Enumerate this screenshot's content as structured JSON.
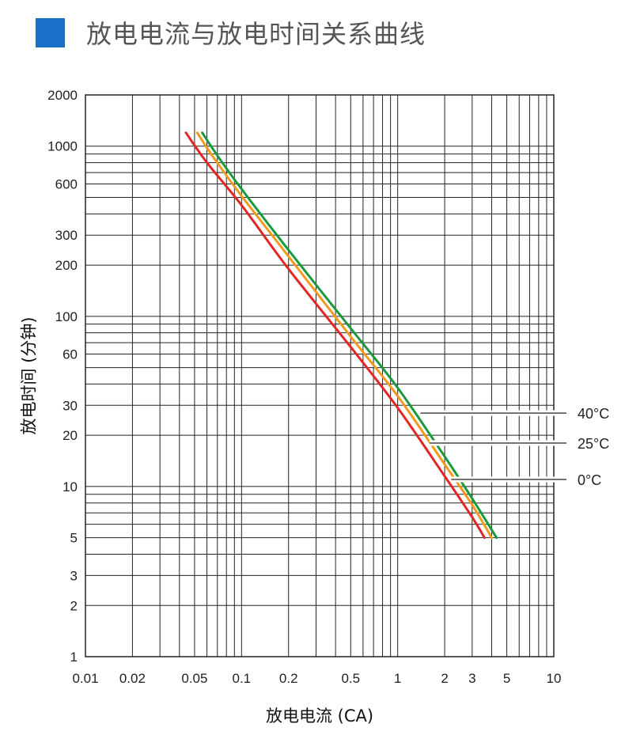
{
  "header": {
    "title": "放电电流与放电时间关系曲线",
    "accent_color": "#1a6fc9"
  },
  "chart_data": {
    "type": "line",
    "title": "放电电流与放电时间关系曲线",
    "xlabel": "放电电流 (CA)",
    "ylabel": "放电时间 (分钟)",
    "x_scale": "log",
    "y_scale": "log",
    "xlim": [
      0.01,
      10
    ],
    "ylim": [
      1,
      2000
    ],
    "grid": true,
    "x_ticks": [
      {
        "value": 0.01,
        "label": "0.01"
      },
      {
        "value": 0.02,
        "label": "0.02"
      },
      {
        "value": 0.05,
        "label": "0.05"
      },
      {
        "value": 0.1,
        "label": "0.1"
      },
      {
        "value": 0.2,
        "label": "0.2"
      },
      {
        "value": 0.5,
        "label": "0.5"
      },
      {
        "value": 1,
        "label": "1"
      },
      {
        "value": 2,
        "label": "2"
      },
      {
        "value": 3,
        "label": "3"
      },
      {
        "value": 5,
        "label": "5"
      },
      {
        "value": 10,
        "label": "10"
      }
    ],
    "y_ticks": [
      {
        "value": 1,
        "label": "1"
      },
      {
        "value": 2,
        "label": "2"
      },
      {
        "value": 3,
        "label": "3"
      },
      {
        "value": 5,
        "label": "5"
      },
      {
        "value": 10,
        "label": "10"
      },
      {
        "value": 20,
        "label": "20"
      },
      {
        "value": 30,
        "label": "30"
      },
      {
        "value": 60,
        "label": "60"
      },
      {
        "value": 100,
        "label": "100"
      },
      {
        "value": 200,
        "label": "200"
      },
      {
        "value": 300,
        "label": "300"
      },
      {
        "value": 600,
        "label": "600"
      },
      {
        "value": 1000,
        "label": "1000"
      },
      {
        "value": 2000,
        "label": "2000"
      }
    ],
    "series": [
      {
        "name": "40°C",
        "color": "#1a9a3e",
        "label_at": {
          "x": 1.4,
          "y": 27
        },
        "x": [
          0.056,
          0.07,
          0.1,
          0.2,
          0.5,
          1,
          2,
          3,
          4.3
        ],
        "y": [
          1200,
          880,
          560,
          245,
          85,
          38,
          15,
          8.5,
          5
        ]
      },
      {
        "name": "25°C",
        "color": "#f39a1e",
        "label_at": {
          "x": 1.6,
          "y": 18
        },
        "x": [
          0.052,
          0.066,
          0.1,
          0.2,
          0.5,
          1,
          2,
          3,
          4.0
        ],
        "y": [
          1200,
          860,
          510,
          225,
          76,
          34,
          13.5,
          7.8,
          5
        ]
      },
      {
        "name": "0°C",
        "color": "#e32626",
        "label_at": {
          "x": 2.2,
          "y": 11
        },
        "x": [
          0.044,
          0.06,
          0.1,
          0.2,
          0.5,
          1,
          2,
          3,
          3.6
        ],
        "y": [
          1200,
          800,
          450,
          190,
          66,
          29,
          11.5,
          6.6,
          5
        ]
      }
    ]
  }
}
